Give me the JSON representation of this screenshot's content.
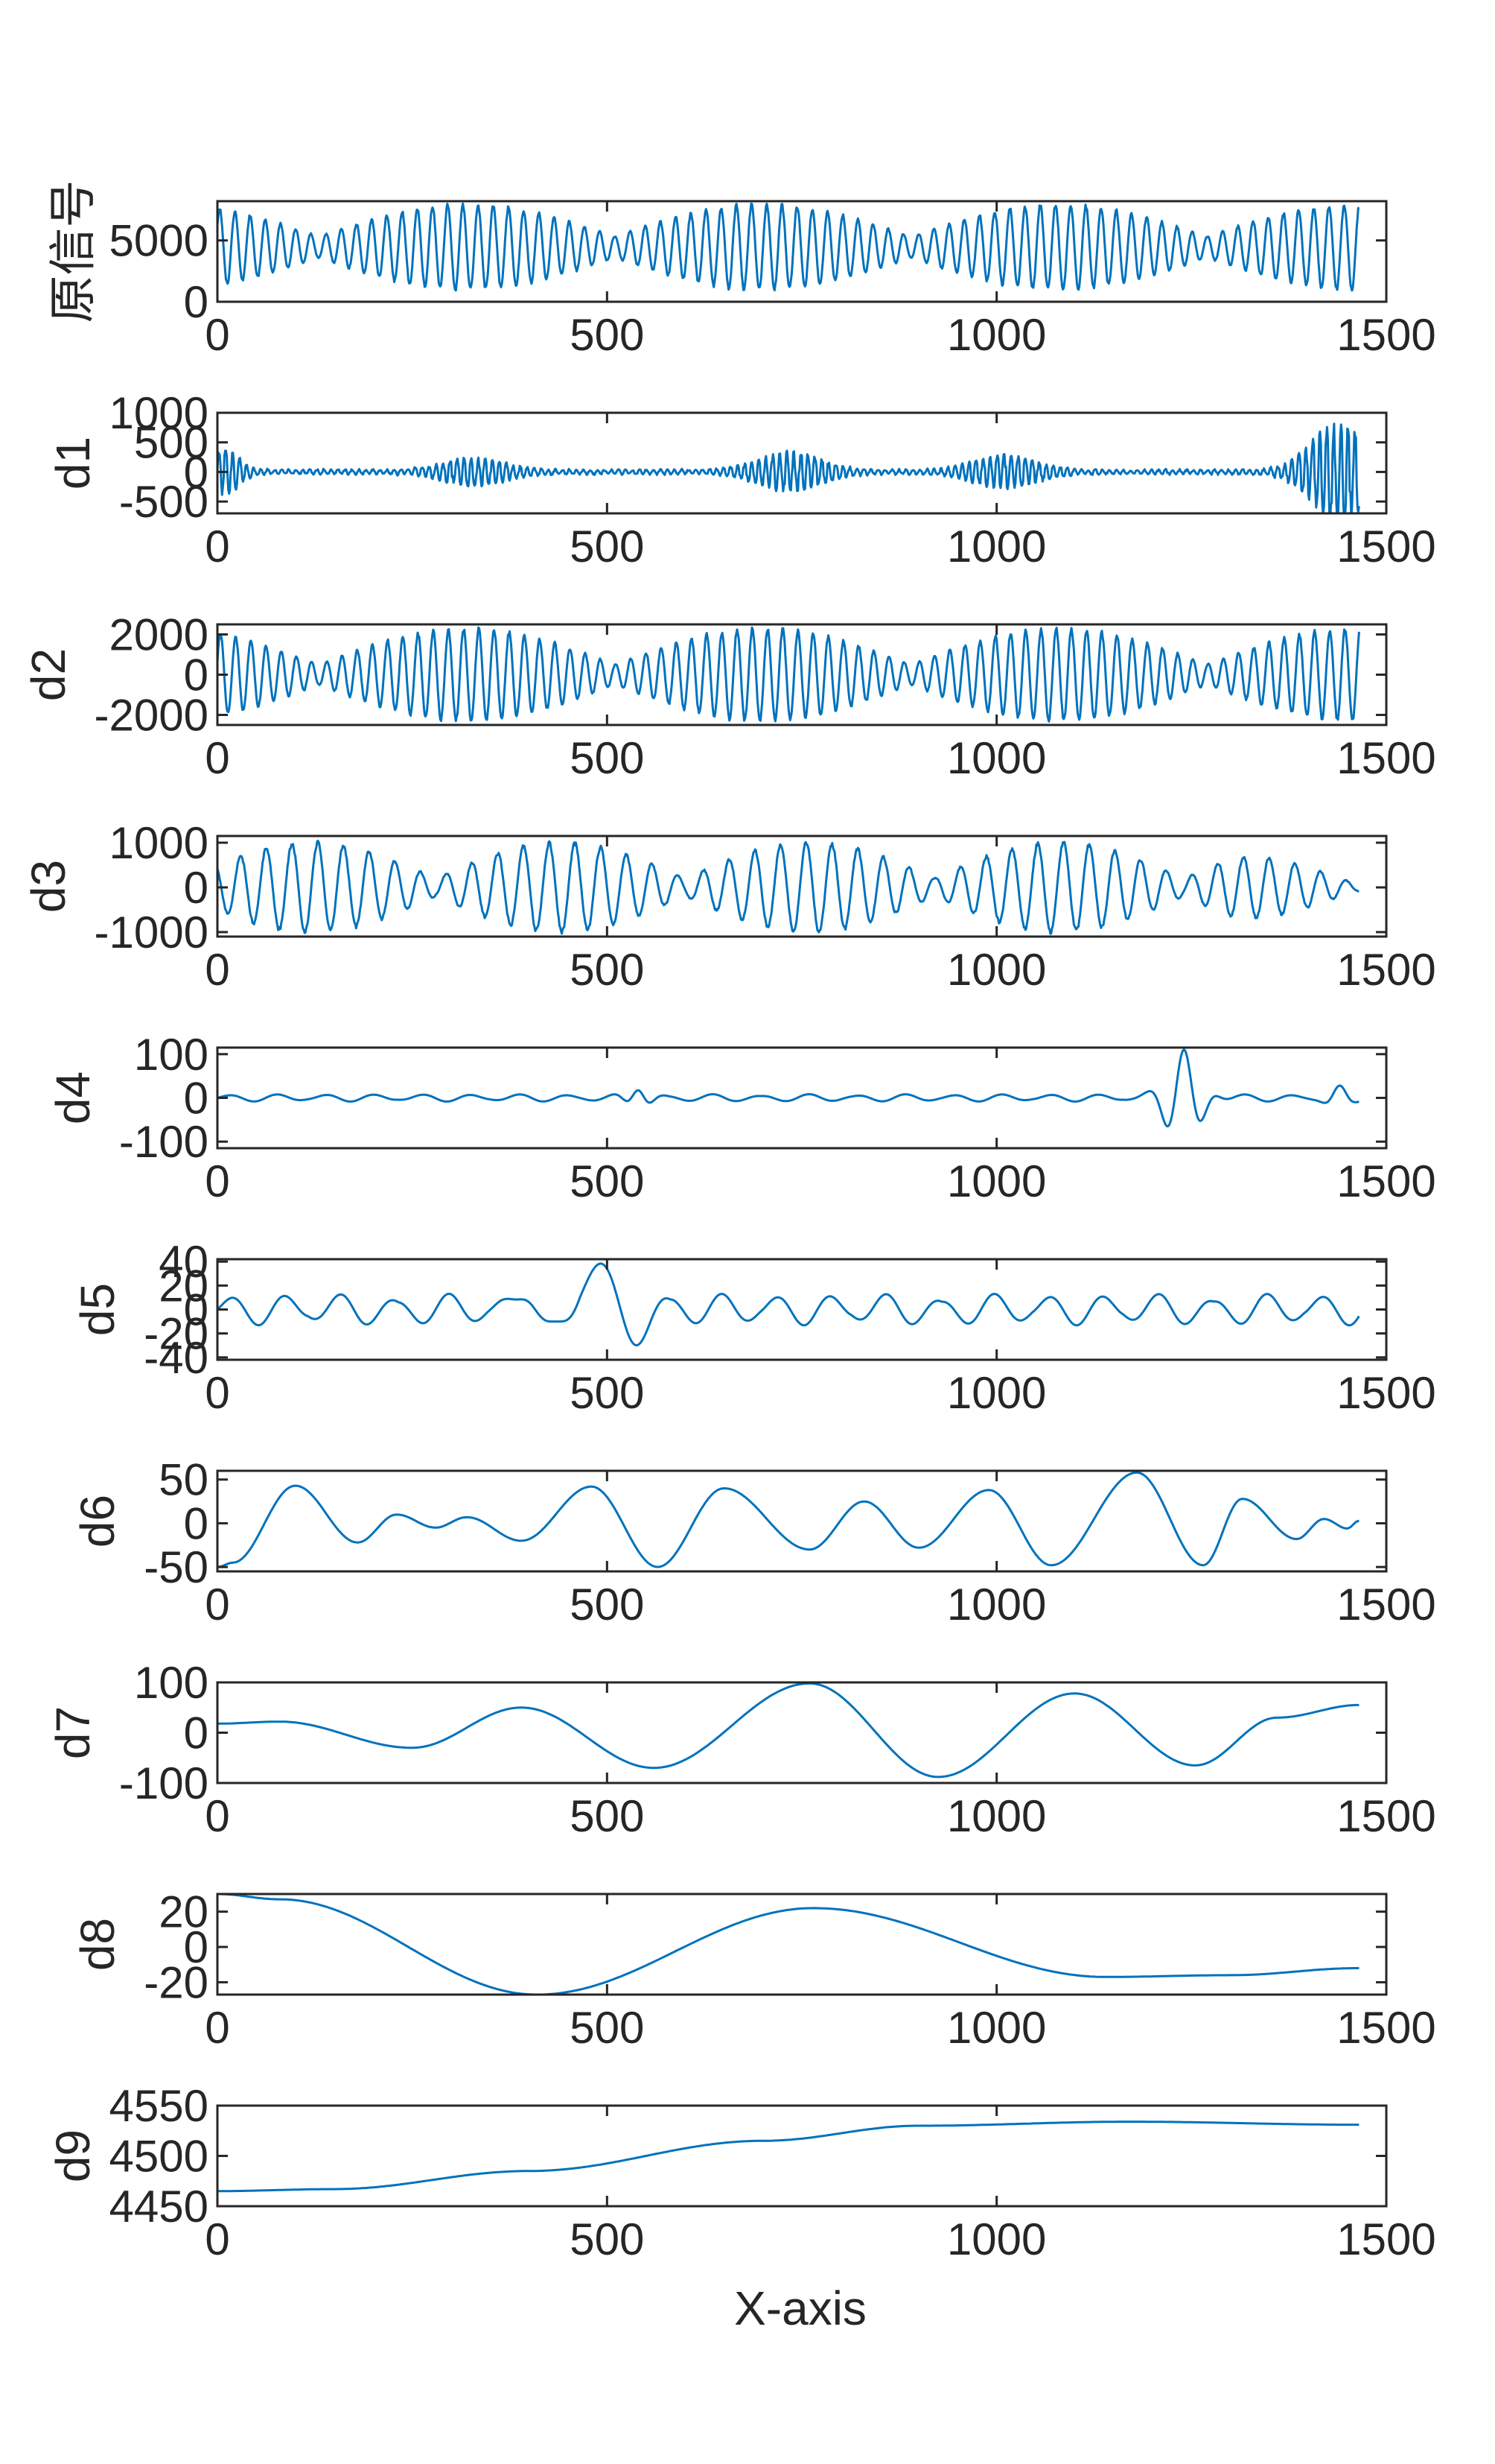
{
  "figure": {
    "xlabel": "X-axis",
    "line_color": "#0072BD",
    "axis_color": "#262626"
  },
  "chart_data": [
    {
      "type": "line",
      "ylabel": "原信号",
      "xlim": [
        0,
        1500
      ],
      "ylim": [
        0,
        8200
      ],
      "xticks": [
        0,
        500,
        1000,
        1500
      ],
      "yticks": [
        0,
        5000
      ],
      "signal": {
        "kind": "beat",
        "n": 1465,
        "offset": 4450,
        "amp": 3650,
        "env_min": 0.25,
        "env_period": 380,
        "env_phase": -60,
        "period": 19.5,
        "phase": 0.6
      }
    },
    {
      "type": "line",
      "ylabel": "d1",
      "xlim": [
        0,
        1500
      ],
      "ylim": [
        -700,
        1000
      ],
      "xticks": [
        0,
        500,
        1000,
        1500
      ],
      "yticks": [
        -500,
        0,
        500,
        1000
      ],
      "signal": {
        "kind": "noisebursts",
        "n": 1465,
        "period": 9.0,
        "base": 35,
        "bursts": [
          {
            "c": 10,
            "w": 25,
            "a": 350
          },
          {
            "c": 330,
            "w": 55,
            "a": 210
          },
          {
            "c": 735,
            "w": 55,
            "a": 310
          },
          {
            "c": 1010,
            "w": 55,
            "a": 250
          },
          {
            "c": 1440,
            "w": 50,
            "a": 820
          }
        ]
      }
    },
    {
      "type": "line",
      "ylabel": "d2",
      "xlim": [
        0,
        1500
      ],
      "ylim": [
        -2500,
        2500
      ],
      "xticks": [
        0,
        500,
        1000,
        1500
      ],
      "yticks": [
        -2000,
        0,
        2000
      ],
      "signal": {
        "kind": "beat",
        "n": 1465,
        "offset": 0,
        "amp": 2400,
        "env_min": 0.22,
        "env_period": 380,
        "env_phase": -60,
        "period": 19.5,
        "phase": 0.3
      }
    },
    {
      "type": "line",
      "ylabel": "d3",
      "xlim": [
        0,
        1500
      ],
      "ylim": [
        -1100,
        1150
      ],
      "xticks": [
        0,
        500,
        1000,
        1500
      ],
      "yticks": [
        -1000,
        0,
        1000
      ],
      "signal": {
        "kind": "beat",
        "n": 1465,
        "offset": 0,
        "amp": 1050,
        "env_min": 0.2,
        "env_period": 320,
        "env_phase": 120,
        "period": 33,
        "phase": 2.2,
        "decay_end": 1400
      }
    },
    {
      "type": "line",
      "ylabel": "d4",
      "xlim": [
        0,
        1500
      ],
      "ylim": [
        -115,
        115
      ],
      "xticks": [
        0,
        500,
        1000,
        1500
      ],
      "yticks": [
        -100,
        0,
        100
      ],
      "signal": {
        "kind": "wavelet",
        "n": 1465,
        "base": 7,
        "period": 62,
        "bursts": [
          {
            "c": 1240,
            "w": 28,
            "a": 110,
            "p": 48
          },
          {
            "c": 540,
            "w": 18,
            "a": 25,
            "p": 40
          },
          {
            "c": 1440,
            "w": 20,
            "a": 20,
            "p": 40
          }
        ]
      }
    },
    {
      "type": "line",
      "ylabel": "d5",
      "xlim": [
        0,
        1500
      ],
      "ylim": [
        -42,
        42
      ],
      "xticks": [
        0,
        500,
        1000,
        1500
      ],
      "yticks": [
        -40,
        -20,
        0,
        20,
        40
      ],
      "signal": {
        "kind": "wavelet",
        "n": 1465,
        "base": 11,
        "period": 70,
        "bursts": [
          {
            "c": 485,
            "w": 60,
            "a": 40,
            "p": 110
          },
          {
            "c": 400,
            "w": 25,
            "a": 18,
            "p": 90
          }
        ]
      }
    },
    {
      "type": "line",
      "ylabel": "d6",
      "xlim": [
        0,
        1500
      ],
      "ylim": [
        -55,
        60
      ],
      "xticks": [
        0,
        500,
        1000,
        1500
      ],
      "yticks": [
        -50,
        0,
        50
      ],
      "signal": {
        "kind": "points",
        "pts": [
          [
            0,
            -50
          ],
          [
            20,
            -45
          ],
          [
            100,
            43
          ],
          [
            180,
            -22
          ],
          [
            230,
            10
          ],
          [
            280,
            -5
          ],
          [
            320,
            7
          ],
          [
            390,
            -20
          ],
          [
            480,
            42
          ],
          [
            565,
            -50
          ],
          [
            650,
            40
          ],
          [
            760,
            -30
          ],
          [
            830,
            25
          ],
          [
            900,
            -28
          ],
          [
            990,
            38
          ],
          [
            1070,
            -48
          ],
          [
            1180,
            58
          ],
          [
            1265,
            -48
          ],
          [
            1315,
            28
          ],
          [
            1385,
            -18
          ],
          [
            1420,
            5
          ],
          [
            1450,
            -6
          ],
          [
            1465,
            3
          ]
        ]
      }
    },
    {
      "type": "line",
      "ylabel": "d7",
      "xlim": [
        0,
        1500
      ],
      "ylim": [
        -100,
        100
      ],
      "xticks": [
        0,
        500,
        1000,
        1500
      ],
      "yticks": [
        -100,
        0,
        100
      ],
      "signal": {
        "kind": "points",
        "pts": [
          [
            0,
            18
          ],
          [
            80,
            22
          ],
          [
            250,
            -30
          ],
          [
            390,
            50
          ],
          [
            560,
            -70
          ],
          [
            760,
            98
          ],
          [
            925,
            -88
          ],
          [
            1100,
            78
          ],
          [
            1255,
            -65
          ],
          [
            1360,
            30
          ],
          [
            1465,
            55
          ]
        ]
      }
    },
    {
      "type": "line",
      "ylabel": "d8",
      "xlim": [
        0,
        1500
      ],
      "ylim": [
        -27,
        30
      ],
      "xticks": [
        0,
        500,
        1000,
        1500
      ],
      "yticks": [
        -20,
        0,
        20
      ],
      "signal": {
        "kind": "points",
        "pts": [
          [
            0,
            30
          ],
          [
            80,
            27
          ],
          [
            410,
            -27
          ],
          [
            765,
            22
          ],
          [
            1140,
            -17
          ],
          [
            1300,
            -16
          ],
          [
            1465,
            -12
          ]
        ]
      }
    },
    {
      "type": "line",
      "ylabel": "d9",
      "xlim": [
        0,
        1500
      ],
      "ylim": [
        4450,
        4550
      ],
      "xticks": [
        0,
        500,
        1000,
        1500
      ],
      "yticks": [
        4450,
        4500,
        4550
      ],
      "signal": {
        "kind": "points",
        "pts": [
          [
            0,
            4465
          ],
          [
            150,
            4467
          ],
          [
            400,
            4485
          ],
          [
            700,
            4515
          ],
          [
            900,
            4530
          ],
          [
            1170,
            4534
          ],
          [
            1465,
            4531
          ]
        ]
      }
    }
  ]
}
